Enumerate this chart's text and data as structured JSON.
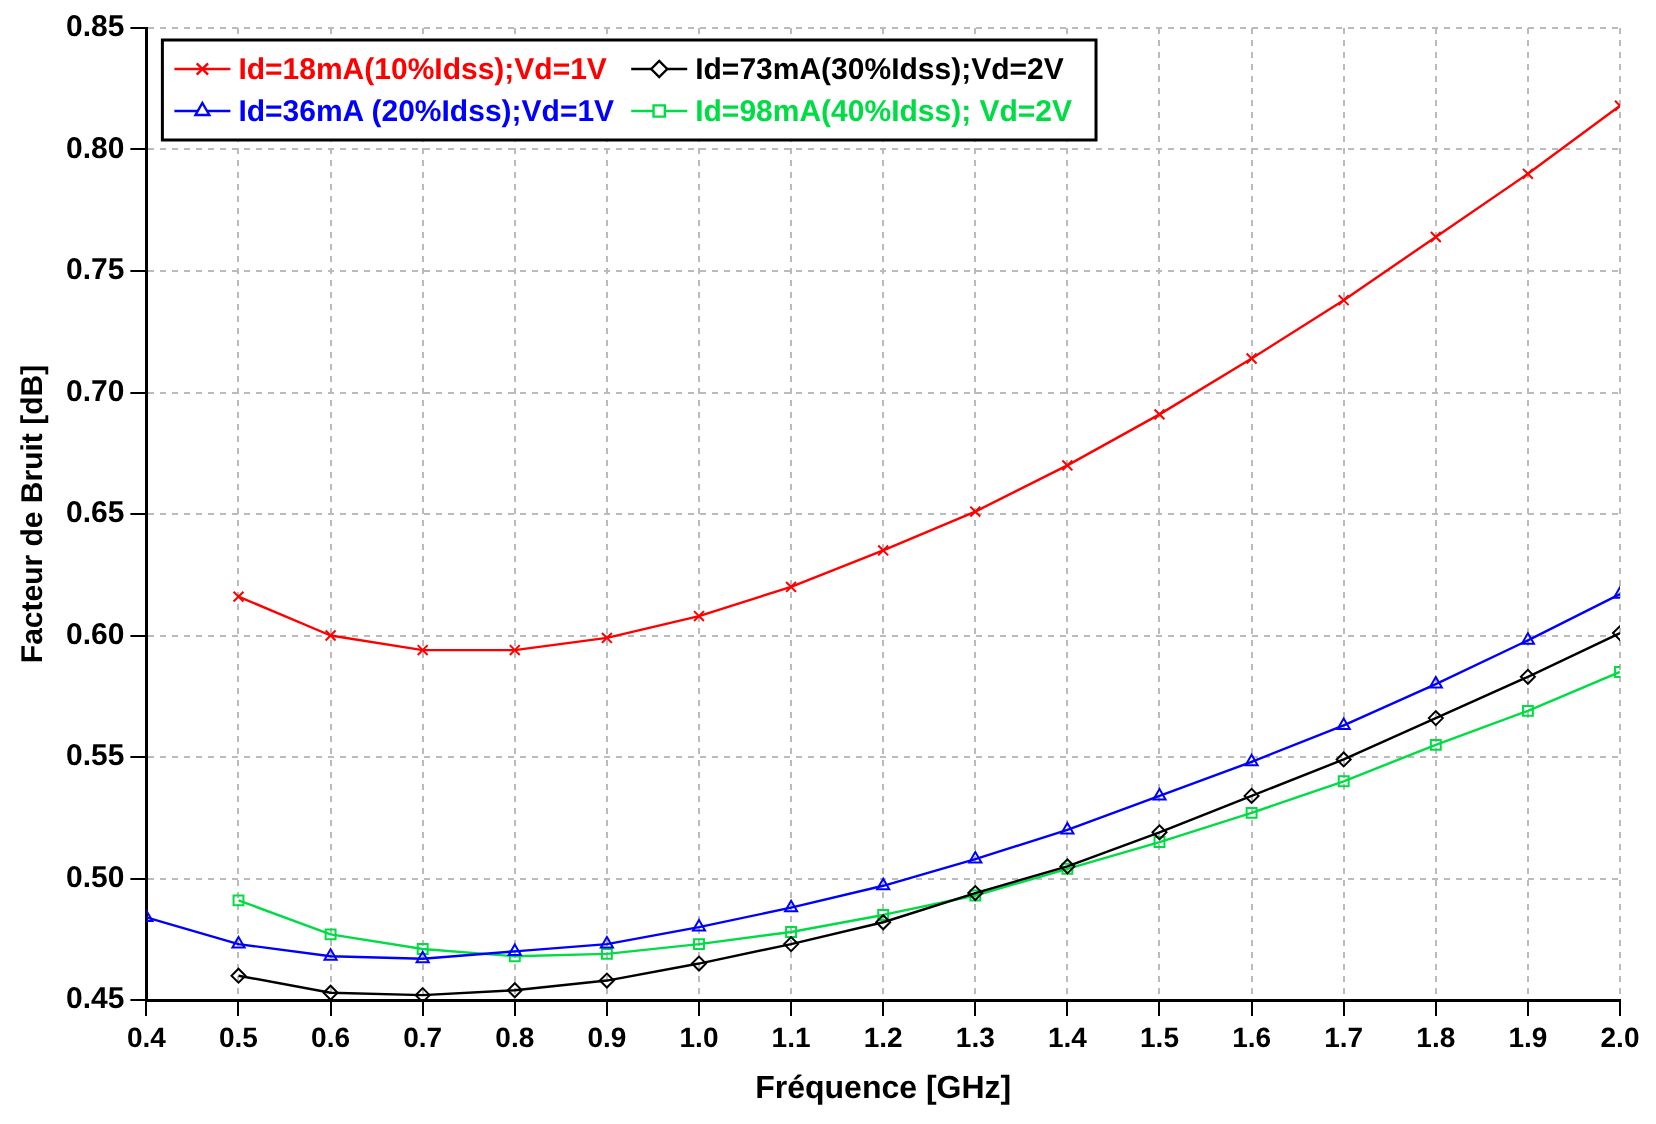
{
  "chart_data": {
    "type": "line",
    "xlabel": "Fréquence [GHz]",
    "ylabel": "Facteur de Bruit [dB]",
    "xlim": [
      0.4,
      2.0
    ],
    "xticks": [
      0.4,
      0.5,
      0.6,
      0.7,
      0.8,
      0.9,
      {
        "value": 1,
        "label": "1.0"
      },
      1.1,
      1.2,
      1.3,
      1.4,
      1.5,
      1.6,
      1.7,
      1.8,
      1.9,
      {
        "value": 2,
        "label": "2.0"
      }
    ],
    "ylim": [
      0.45,
      0.85
    ],
    "yticks": [
      0.45,
      {
        "value": 0.5,
        "label": "0.50"
      },
      0.55,
      {
        "value": 0.6,
        "label": "0.60"
      },
      0.65,
      {
        "value": 0.7,
        "label": "0.70"
      },
      0.75,
      {
        "value": 0.8,
        "label": "0.80"
      },
      0.85
    ],
    "grid": true,
    "legend": "top left",
    "line_style": "solid",
    "series": [
      {
        "name": "Id=18mA(10%Idss);Vd=1V",
        "color": "#ff0000",
        "marker": "cross",
        "x": [
          0.5,
          0.6,
          0.7,
          0.8,
          0.9,
          1.0,
          1.1,
          1.2,
          1.3,
          1.4,
          1.5,
          1.6,
          1.7,
          1.8,
          1.9,
          2.0
        ],
        "values": [
          0.616,
          0.6,
          0.594,
          0.594,
          0.599,
          0.608,
          0.62,
          0.635,
          0.651,
          0.67,
          0.691,
          0.714,
          0.738,
          0.764,
          0.79,
          0.818
        ]
      },
      {
        "name": "Id=73mA(30%Idss);Vd=2V",
        "color": "#000000",
        "marker": "diamond",
        "x": [
          0.5,
          0.6,
          0.7,
          0.8,
          0.9,
          1.0,
          1.1,
          1.2,
          1.3,
          1.4,
          1.5,
          1.6,
          1.7,
          1.8,
          1.9,
          2.0
        ],
        "values": [
          0.46,
          0.453,
          0.452,
          0.454,
          0.458,
          0.465,
          0.473,
          0.482,
          0.494,
          0.505,
          0.519,
          0.534,
          0.549,
          0.566,
          0.583,
          0.601
        ]
      },
      {
        "name": "Id=36mA (20%Idss);Vd=1V",
        "color": "#0000ff",
        "marker": "triangle",
        "x": [
          0.4,
          0.5,
          0.6,
          0.7,
          0.8,
          0.9,
          1.0,
          1.1,
          1.2,
          1.3,
          1.4,
          1.5,
          1.6,
          1.7,
          1.8,
          1.9,
          2.0
        ],
        "values": [
          0.484,
          0.473,
          0.468,
          0.467,
          0.47,
          0.473,
          0.48,
          0.488,
          0.497,
          0.508,
          0.52,
          0.534,
          0.548,
          0.563,
          0.58,
          0.598,
          0.617
        ]
      },
      {
        "name": "Id=98mA(40%Idss); Vd=2V",
        "color": "#00dd44",
        "marker": "square",
        "x": [
          0.5,
          0.6,
          0.7,
          0.8,
          0.9,
          1.0,
          1.1,
          1.2,
          1.3,
          1.4,
          1.5,
          1.6,
          1.7,
          1.8,
          1.9,
          2.0
        ],
        "values": [
          0.491,
          0.477,
          0.471,
          0.468,
          0.469,
          0.473,
          0.478,
          0.485,
          0.493,
          0.504,
          0.515,
          0.527,
          0.54,
          0.555,
          0.569,
          0.585
        ]
      }
    ]
  }
}
